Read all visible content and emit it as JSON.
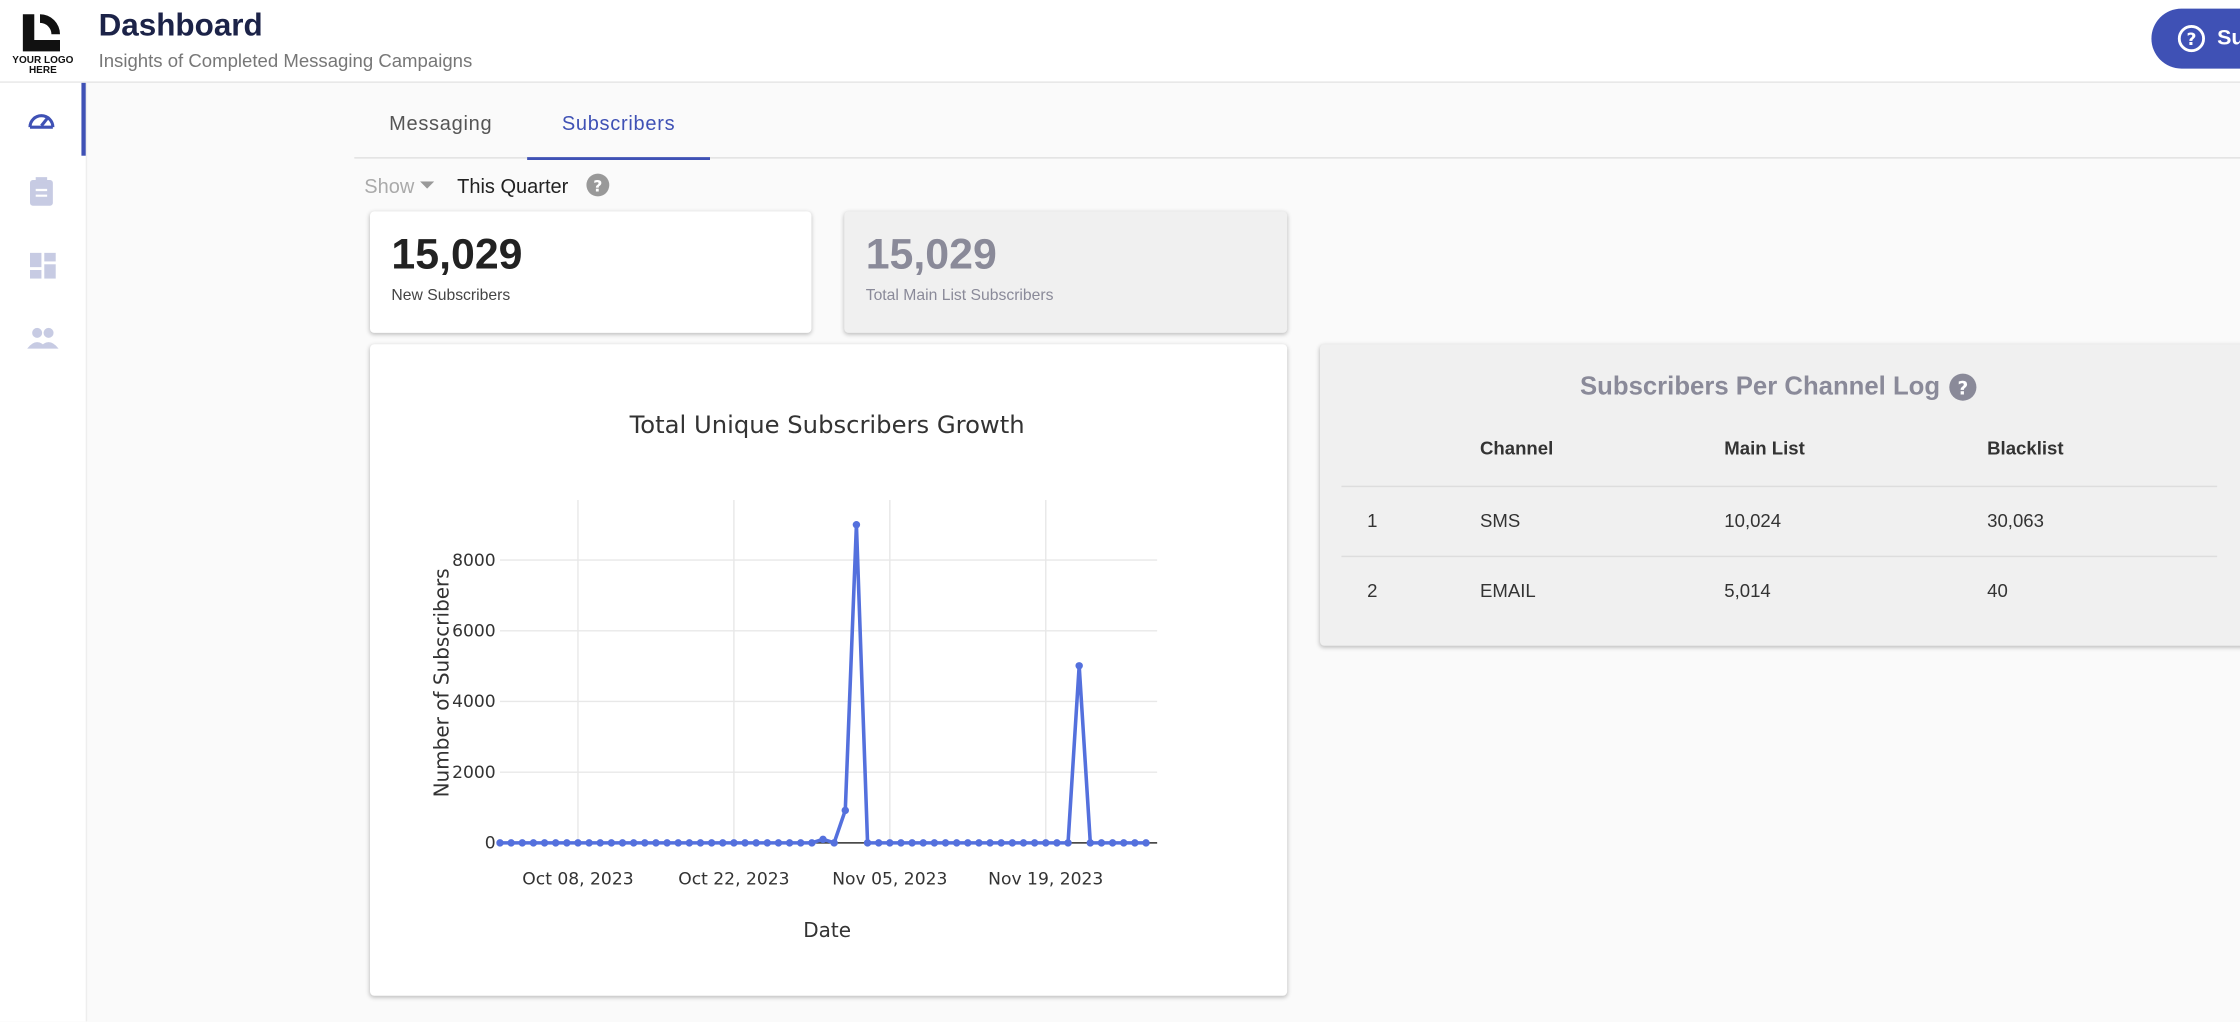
{
  "header": {
    "logo_text": "YOUR LOGO HERE",
    "title": "Dashboard",
    "subtitle": "Insights of Completed Messaging Campaigns",
    "help_button": "Su"
  },
  "tabs": [
    "Messaging",
    "Subscribers"
  ],
  "filter": {
    "label": "Show",
    "value": "This Quarter"
  },
  "cards": [
    {
      "value": "15,029",
      "label": "New Subscribers"
    },
    {
      "value": "15,029",
      "label": "Total Main List Subscribers"
    }
  ],
  "table": {
    "title": "Subscribers Per Channel Log",
    "columns": [
      "Channel",
      "Main List",
      "Blacklist"
    ],
    "rows": [
      [
        "1",
        "SMS",
        "10,024",
        "30,063"
      ],
      [
        "2",
        "EMAIL",
        "5,014",
        "40"
      ]
    ]
  },
  "chart_data": {
    "type": "line",
    "title": "Total Unique Subscribers Growth",
    "x_label": "Date",
    "y_label": "Number of Subscribers",
    "color": "#5470dd",
    "grid": true,
    "x": [
      "2023-10-01",
      "2023-10-02",
      "2023-10-03",
      "2023-10-04",
      "2023-10-05",
      "2023-10-06",
      "2023-10-07",
      "2023-10-08",
      "2023-10-09",
      "2023-10-10",
      "2023-10-11",
      "2023-10-12",
      "2023-10-13",
      "2023-10-14",
      "2023-10-15",
      "2023-10-16",
      "2023-10-17",
      "2023-10-18",
      "2023-10-19",
      "2023-10-20",
      "2023-10-21",
      "2023-10-22",
      "2023-10-23",
      "2023-10-24",
      "2023-10-25",
      "2023-10-26",
      "2023-10-27",
      "2023-10-28",
      "2023-10-29",
      "2023-10-30",
      "2023-10-31",
      "2023-11-01",
      "2023-11-02",
      "2023-11-03",
      "2023-11-04",
      "2023-11-05",
      "2023-11-06",
      "2023-11-07",
      "2023-11-08",
      "2023-11-09",
      "2023-11-10",
      "2023-11-11",
      "2023-11-12",
      "2023-11-13",
      "2023-11-14",
      "2023-11-15",
      "2023-11-16",
      "2023-11-17",
      "2023-11-18",
      "2023-11-19",
      "2023-11-20",
      "2023-11-21",
      "2023-11-22",
      "2023-11-23",
      "2023-11-24",
      "2023-11-25",
      "2023-11-26",
      "2023-11-27",
      "2023-11-28"
    ],
    "values": [
      0,
      0,
      0,
      0,
      0,
      0,
      0,
      0,
      0,
      0,
      0,
      0,
      0,
      0,
      0,
      0,
      0,
      0,
      0,
      0,
      0,
      0,
      0,
      0,
      0,
      0,
      0,
      0,
      0,
      100,
      0,
      920,
      9000,
      0,
      0,
      0,
      0,
      0,
      0,
      0,
      0,
      0,
      0,
      0,
      0,
      0,
      0,
      0,
      0,
      0,
      0,
      0,
      5009,
      0,
      0,
      0,
      0,
      0,
      0
    ],
    "xlim": [
      "2023-10-01",
      "2023-11-29"
    ],
    "xticks": [
      {
        "value": "2023-10-08",
        "label": "Oct 08, 2023"
      },
      {
        "value": "2023-10-22",
        "label": "Oct 22, 2023"
      },
      {
        "value": "2023-11-05",
        "label": "Nov 05, 2023"
      },
      {
        "value": "2023-11-19",
        "label": "Nov 19, 2023"
      }
    ],
    "ylim": [
      0,
      9700
    ],
    "yticks": [
      0,
      2000,
      4000,
      6000,
      8000
    ]
  }
}
